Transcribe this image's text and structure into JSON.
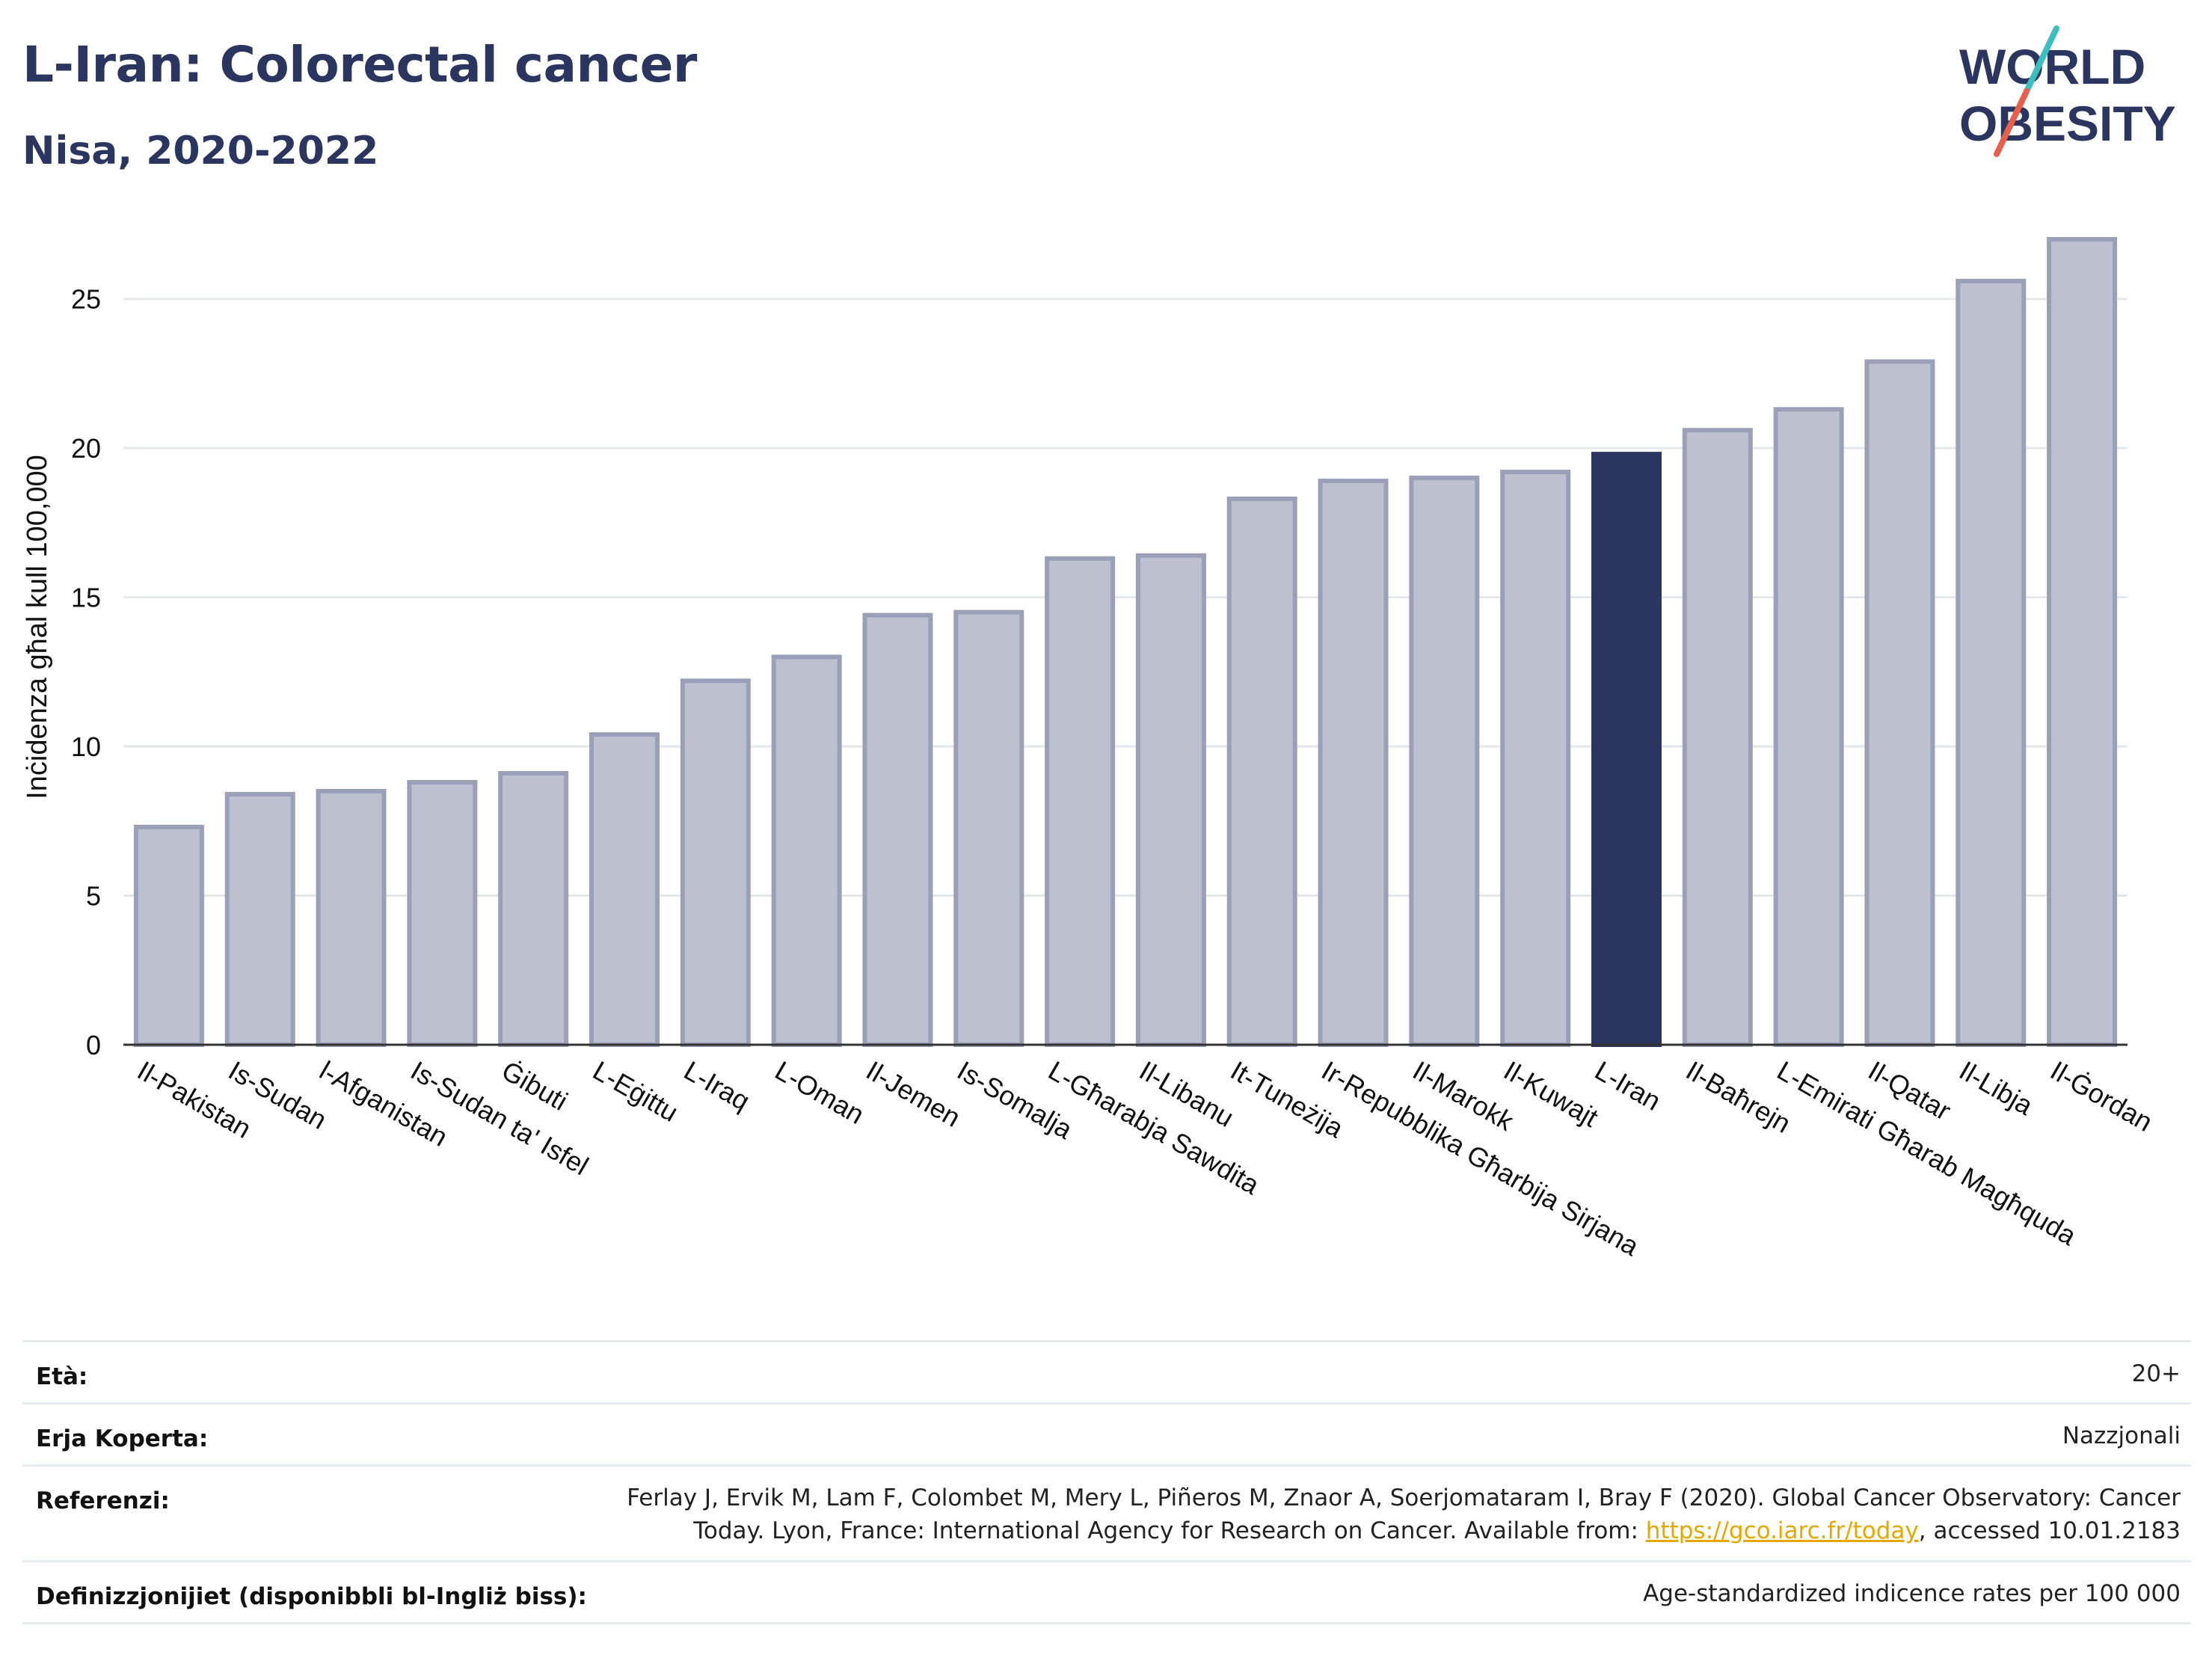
{
  "header": {
    "title": "L-Iran: Colorectal cancer",
    "subtitle": "Nisa, 2020-2022",
    "logo_text_line1": "WORLD",
    "logo_text_line2": "OBESITY"
  },
  "colors": {
    "title": "#2a3560",
    "bar_default": "#bcc0cf",
    "bar_border": "#9aa0b8",
    "bar_highlight": "#2a3560",
    "logo_slash_teal": "#3bbfbf",
    "logo_slash_red": "#e8604c"
  },
  "chart_data": {
    "type": "bar",
    "ylabel": "Inċidenza għal kull 100,000",
    "ylim": [
      0,
      27.5
    ],
    "yticks": [
      0,
      5,
      10,
      15,
      20,
      25
    ],
    "grid": true,
    "highlight": "L-Iran",
    "categories": [
      "Il-Pakistan",
      "Is-Sudan",
      "l-Afganistan",
      "Is-Sudan ta' Isfel",
      "Ġibuti",
      "L-Eġittu",
      "L-Iraq",
      "L-Oman",
      "Il-Jemen",
      "Is-Somalja",
      "L-Għarabja Sawdita",
      "Il-Libanu",
      "It-Tuneżija",
      "Ir-Repubblika Għarbija Sirjana",
      "Il-Marokk",
      "Il-Kuwajt",
      "L-Iran",
      "Il-Baħrejn",
      "L-Emirati Għarab Magħquda",
      "Il-Qatar",
      "Il-Libja",
      "Il-Ġordan"
    ],
    "values": [
      7.3,
      8.4,
      8.5,
      8.8,
      9.1,
      10.4,
      12.2,
      13.0,
      14.4,
      14.5,
      16.3,
      16.4,
      18.3,
      18.9,
      19.0,
      19.2,
      19.8,
      20.6,
      21.3,
      22.9,
      25.6,
      27.0
    ]
  },
  "meta": [
    {
      "label": "Età:",
      "value_lines": [
        "20+"
      ]
    },
    {
      "label": "Erja Koperta:",
      "value_lines": [
        "Nazzjonali"
      ]
    },
    {
      "label": "Referenzi:",
      "value_lines": [
        "Ferlay J, Ervik M, Lam F, Colombet M, Mery L, Piñeros M, Znaor A, Soerjomataram I, Bray F (2020). Global Cancer Observatory: Cancer",
        "Today. Lyon, France: International Agency for Research on Cancer. Available from: ",
        "https://gco.iarc.fr/today",
        ", accessed 10.01.2183"
      ]
    },
    {
      "label": "Definizzjonijiet (disponibbli bl-Ingliż biss):",
      "value_lines": [
        "Age-standardized indicence rates per 100 000"
      ]
    }
  ]
}
